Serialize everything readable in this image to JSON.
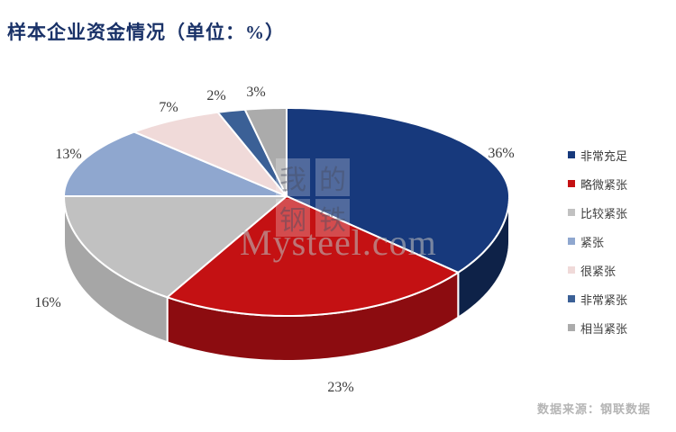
{
  "title": "样本企业资金情况（单位：%）",
  "footer": {
    "source": "数据来源：钢联数据"
  },
  "watermark": {
    "chars": [
      "我",
      "的",
      "钢",
      "铁"
    ],
    "domain": "Mysteel.com"
  },
  "chart_data": {
    "type": "pie",
    "effect": "3d",
    "title": "样本企业资金情况（单位：%）",
    "unit": "%",
    "legend_position": "right",
    "labels": [
      "非常充足",
      "略微紧张",
      "比较紧张",
      "紧张",
      "很紧张",
      "非常紧张",
      "相当紧张"
    ],
    "values": [
      36,
      23,
      16,
      13,
      7,
      2,
      3
    ],
    "labels_pct": [
      "36%",
      "23%",
      "16%",
      "13%",
      "7%",
      "2%",
      "3%"
    ],
    "colors": [
      "#17397C",
      "#C41113",
      "#C1C1C1",
      "#8FA7CF",
      "#F0DAD9",
      "#3B6096",
      "#ABABAB"
    ],
    "side_colors": [
      "#0E2248",
      "#8C0C10",
      "#A6A6A6",
      "#6F8CB8",
      "#D9BEBD",
      "#2A4A78",
      "#8F8F8F"
    ],
    "title_color": "#1A3268",
    "source_color": "#B5B5B5"
  }
}
